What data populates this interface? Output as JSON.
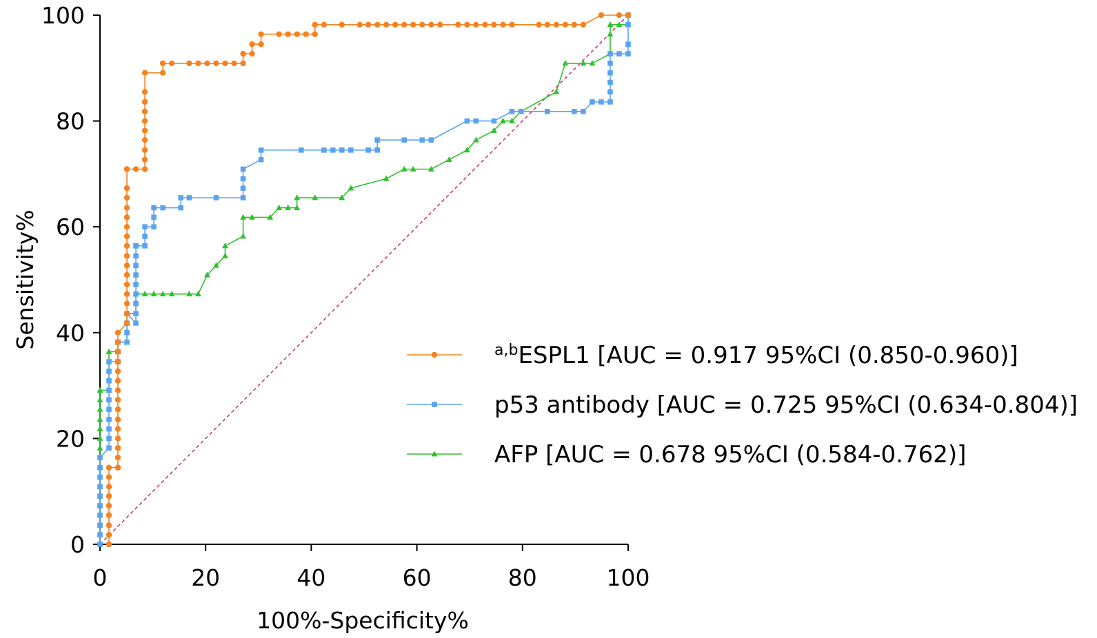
{
  "chart_data": {
    "type": "line",
    "xlabel": "100%-Specificity%",
    "ylabel": "Sensitivity%",
    "xlim": [
      0,
      100
    ],
    "ylim": [
      0,
      100
    ],
    "x_ticks": [
      "0",
      "20",
      "40",
      "60",
      "80",
      "100"
    ],
    "y_ticks": [
      "0",
      "20",
      "40",
      "60",
      "80",
      "100"
    ],
    "grid": false,
    "legend_position": "right-middle",
    "reference_line": {
      "x": [
        0,
        100
      ],
      "y": [
        0,
        100
      ],
      "color": "#d6336c",
      "style": "dashed"
    },
    "series": [
      {
        "name_sup": "a,b",
        "name": "ESPL1 [AUC = 0.917 95%CI (0.850-0.960)]",
        "color": "#f5821f",
        "marker": "circle",
        "x": [
          1.7,
          1.7,
          1.7,
          1.7,
          1.7,
          1.7,
          1.7,
          1.7,
          1.7,
          3.4,
          3.4,
          3.4,
          3.4,
          3.4,
          3.4,
          3.4,
          3.4,
          3.4,
          3.4,
          3.4,
          3.4,
          3.4,
          3.4,
          3.4,
          5.1,
          5.1,
          5.1,
          5.1,
          5.1,
          5.1,
          5.1,
          5.1,
          5.1,
          5.1,
          5.1,
          5.1,
          5.1,
          5.1,
          5.1,
          5.1,
          6.8,
          8.5,
          8.5,
          8.5,
          8.5,
          8.5,
          8.5,
          8.5,
          8.5,
          8.5,
          8.5,
          11.9,
          11.9,
          13.6,
          16.9,
          18.6,
          20.3,
          22.0,
          23.7,
          25.4,
          27.1,
          27.1,
          28.8,
          28.8,
          30.5,
          30.5,
          33.9,
          35.6,
          37.3,
          39.0,
          40.7,
          40.7,
          42.4,
          45.8,
          49.2,
          50.8,
          52.5,
          54.2,
          55.9,
          57.6,
          59.3,
          61.0,
          62.7,
          64.4,
          67.8,
          69.5,
          71.2,
          72.9,
          74.6,
          76.3,
          78.0,
          83.1,
          84.7,
          86.4,
          88.1,
          89.8,
          91.5,
          94.9,
          98.3,
          100
        ],
        "y": [
          0,
          1.8,
          3.6,
          5.5,
          7.3,
          9.1,
          10.9,
          12.7,
          14.5,
          14.5,
          16.4,
          18.2,
          20.0,
          21.8,
          23.6,
          25.5,
          27.3,
          29.1,
          30.9,
          32.7,
          34.5,
          36.4,
          38.2,
          40.0,
          41.8,
          43.6,
          45.5,
          47.3,
          49.1,
          50.9,
          52.7,
          54.5,
          56.4,
          58.2,
          60.0,
          61.8,
          63.6,
          65.5,
          67.3,
          70.9,
          70.9,
          70.9,
          72.7,
          74.5,
          76.4,
          78.2,
          80.0,
          81.8,
          83.6,
          85.5,
          89.1,
          89.1,
          90.9,
          90.9,
          90.9,
          90.9,
          90.9,
          90.9,
          90.9,
          90.9,
          90.9,
          92.7,
          92.7,
          94.5,
          94.5,
          96.4,
          96.4,
          96.4,
          96.4,
          96.4,
          96.4,
          98.2,
          98.2,
          98.2,
          98.2,
          98.2,
          98.2,
          98.2,
          98.2,
          98.2,
          98.2,
          98.2,
          98.2,
          98.2,
          98.2,
          98.2,
          98.2,
          98.2,
          98.2,
          98.2,
          98.2,
          98.2,
          98.2,
          98.2,
          98.2,
          98.2,
          98.2,
          100,
          100,
          100
        ]
      },
      {
        "name": "p53 antibody [AUC = 0.725 95%CI (0.634-0.804)]",
        "color": "#5ba3f0",
        "marker": "square",
        "x": [
          0,
          0,
          0,
          0,
          0,
          0,
          0,
          0,
          0,
          0,
          1.7,
          1.7,
          1.7,
          1.7,
          1.7,
          1.7,
          1.7,
          1.7,
          1.7,
          1.7,
          3.4,
          3.4,
          3.4,
          3.4,
          5.1,
          5.1,
          5.1,
          5.1,
          6.8,
          6.8,
          6.8,
          6.8,
          6.8,
          6.8,
          6.8,
          6.8,
          6.8,
          6.8,
          8.5,
          8.5,
          8.5,
          10.2,
          10.2,
          10.2,
          11.9,
          15.3,
          15.3,
          16.9,
          22.0,
          27.1,
          27.1,
          27.1,
          27.1,
          30.5,
          30.5,
          38.1,
          42.4,
          44.1,
          45.8,
          47.5,
          50.8,
          52.5,
          52.5,
          57.6,
          61.0,
          62.7,
          69.5,
          71.2,
          74.6,
          78.0,
          79.7,
          84.7,
          89.8,
          91.5,
          93.2,
          94.9,
          96.6,
          96.6,
          96.6,
          96.6,
          96.6,
          96.6,
          98.3,
          100,
          100,
          100,
          100
        ],
        "y": [
          0,
          1.8,
          3.6,
          5.5,
          7.3,
          9.1,
          10.9,
          12.7,
          14.5,
          16.4,
          18.2,
          20.0,
          21.8,
          23.6,
          25.5,
          27.3,
          29.1,
          30.9,
          32.7,
          34.5,
          34.5,
          36.4,
          38.2,
          38.2,
          38.2,
          40.0,
          41.8,
          43.6,
          41.8,
          43.6,
          45.5,
          47.3,
          49.1,
          50.9,
          52.7,
          54.5,
          56.4,
          56.4,
          56.4,
          58.2,
          60.0,
          60.0,
          61.8,
          63.6,
          63.6,
          63.6,
          65.5,
          65.5,
          65.5,
          65.5,
          67.3,
          69.1,
          70.9,
          72.7,
          74.5,
          74.5,
          74.5,
          74.5,
          74.5,
          74.5,
          74.5,
          74.5,
          76.4,
          76.4,
          76.4,
          76.4,
          80.0,
          80.0,
          80.0,
          81.8,
          81.8,
          81.8,
          81.8,
          81.8,
          83.6,
          83.6,
          83.6,
          85.5,
          87.3,
          89.1,
          90.9,
          92.7,
          92.7,
          92.7,
          94.5,
          98.2,
          100
        ]
      },
      {
        "name": "AFP [AUC = 0.678 95%CI (0.584-0.762)]",
        "color": "#2ec22e",
        "marker": "triangle",
        "x": [
          0,
          0,
          0,
          0,
          0,
          0,
          0,
          0,
          0,
          0,
          0,
          0,
          0,
          0,
          0,
          0,
          0,
          0,
          1.7,
          1.7,
          3.4,
          3.4,
          5.1,
          5.1,
          6.8,
          6.8,
          6.8,
          8.5,
          10.2,
          11.9,
          13.6,
          16.9,
          18.6,
          20.3,
          22.0,
          23.7,
          23.7,
          27.1,
          27.1,
          28.8,
          32.2,
          33.9,
          35.6,
          37.3,
          37.3,
          40.7,
          45.8,
          47.5,
          54.2,
          57.6,
          59.3,
          62.7,
          66.1,
          69.5,
          71.2,
          74.6,
          76.3,
          78.0,
          79.7,
          86.4,
          88.1,
          91.5,
          93.2,
          96.6,
          96.6,
          96.6,
          98.3,
          100,
          100
        ],
        "y": [
          0,
          1.8,
          3.6,
          5.5,
          7.3,
          9.1,
          10.9,
          12.7,
          14.5,
          16.4,
          18.2,
          20.0,
          21.8,
          23.6,
          25.5,
          27.3,
          29.1,
          29.1,
          29.1,
          36.4,
          36.4,
          38.2,
          38.2,
          43.6,
          43.6,
          45.5,
          47.3,
          47.3,
          47.3,
          47.3,
          47.3,
          47.3,
          47.3,
          50.9,
          52.7,
          54.5,
          56.4,
          58.2,
          61.8,
          61.8,
          61.8,
          63.6,
          63.6,
          63.6,
          65.5,
          65.5,
          65.5,
          67.3,
          69.1,
          70.9,
          70.9,
          70.9,
          72.7,
          74.5,
          76.4,
          78.2,
          80.0,
          80.0,
          81.8,
          85.5,
          90.9,
          90.9,
          90.9,
          92.7,
          96.4,
          98.2,
          98.2,
          98.2,
          100
        ]
      }
    ]
  }
}
